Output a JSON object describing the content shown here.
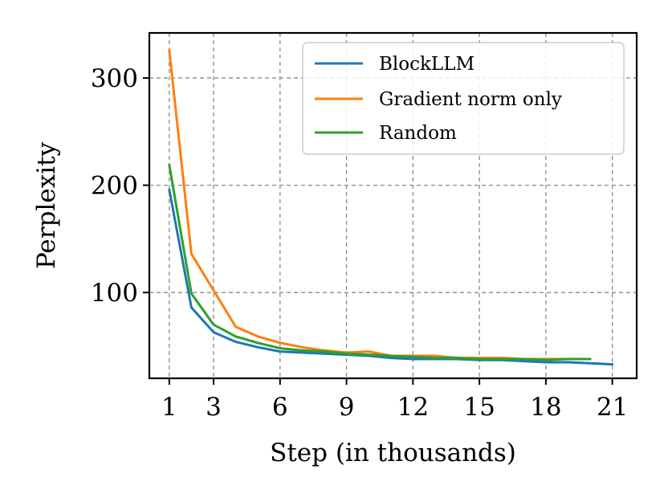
{
  "chart_data": {
    "type": "line",
    "title": "",
    "xlabel": "Step (in thousands)",
    "ylabel": "Perplexity",
    "xlim": [
      0.1,
      22.1
    ],
    "ylim": [
      20,
      342
    ],
    "x_ticks": [
      1,
      3,
      6,
      9,
      12,
      15,
      18,
      21
    ],
    "y_ticks": [
      100,
      200,
      300
    ],
    "grid": true,
    "legend": {
      "position": "top-right"
    },
    "series": [
      {
        "name": "BlockLLM",
        "color": "#1f77b4",
        "x": [
          1,
          2,
          3,
          4,
          5,
          6,
          7,
          8,
          9,
          10,
          11,
          12,
          13,
          14,
          15,
          16,
          17,
          18,
          19,
          20,
          21
        ],
        "y": [
          196,
          86,
          63,
          54,
          49,
          45,
          44,
          43,
          42,
          41,
          39,
          38,
          38,
          38,
          37,
          37,
          36,
          35,
          35,
          34,
          33
        ]
      },
      {
        "name": "Gradient norm only",
        "color": "#ff7f0e",
        "x": [
          1,
          2,
          3,
          4,
          5,
          6,
          7,
          8,
          9,
          10,
          11,
          12,
          13,
          14,
          15,
          16,
          17,
          18,
          19,
          20
        ],
        "y": [
          326,
          136,
          102,
          68,
          59,
          53,
          49,
          46,
          44,
          45,
          41,
          41,
          41,
          39,
          39,
          39,
          38,
          38,
          38,
          38
        ]
      },
      {
        "name": "Random",
        "color": "#2ca02c",
        "x": [
          1,
          2,
          3,
          4,
          5,
          6,
          7,
          8,
          9,
          10,
          11,
          12,
          13,
          14,
          15,
          16,
          17,
          18,
          19,
          20
        ],
        "y": [
          219,
          99,
          70,
          59,
          53,
          48,
          46,
          45,
          43,
          42,
          41,
          40,
          39,
          39,
          38,
          38,
          38,
          37,
          38,
          38
        ]
      }
    ]
  }
}
